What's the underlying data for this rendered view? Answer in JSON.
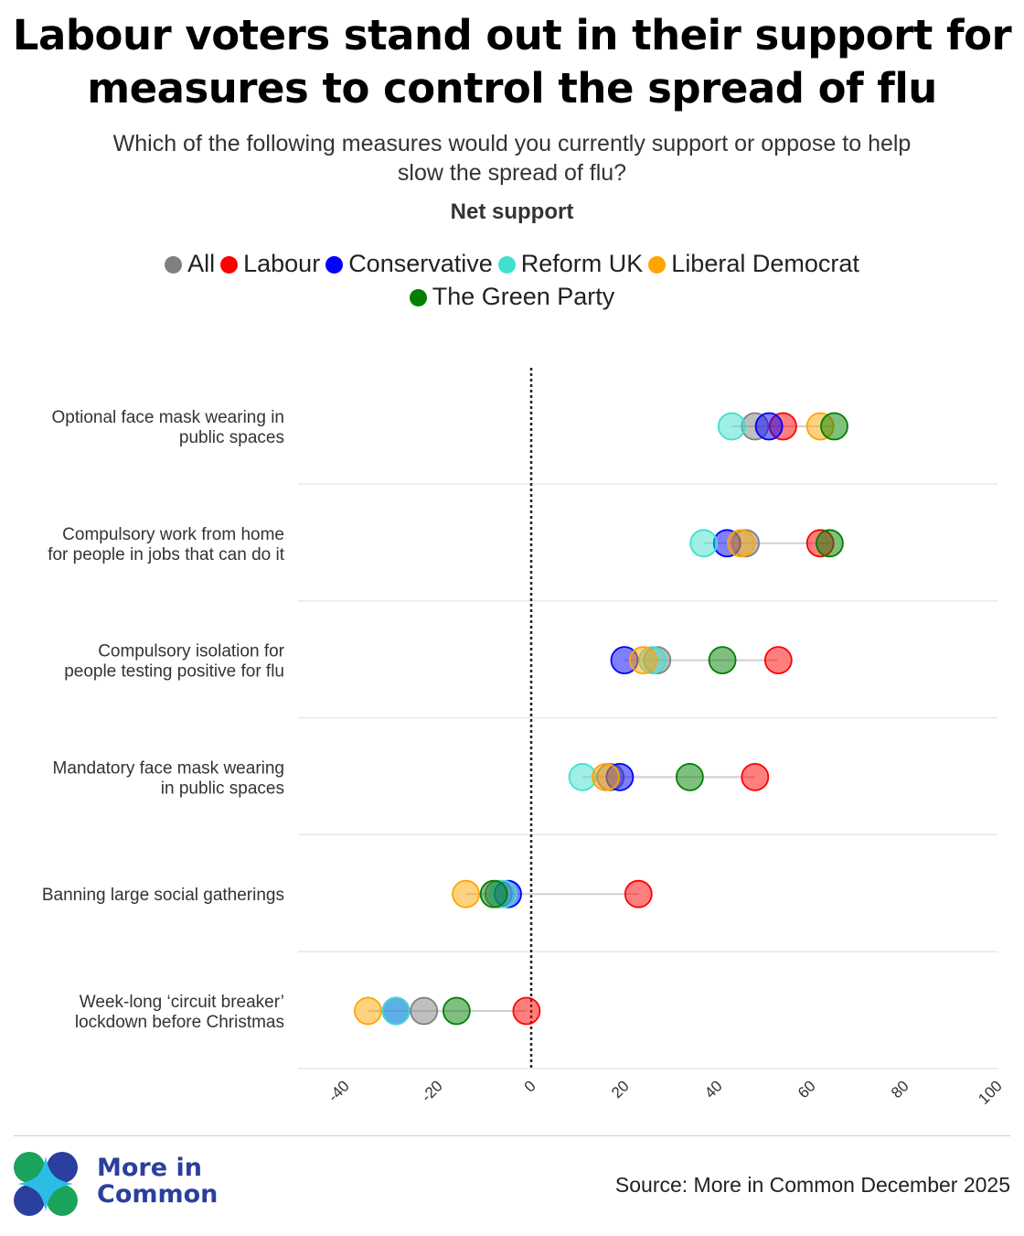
{
  "title_line1": "Labour voters stand out in their support for",
  "title_line2": "measures to control the spread of flu",
  "subtitle_line1": "Which of the following measures would you currently support or oppose to help",
  "subtitle_line2": "slow the spread of flu?",
  "logo_text_line1": "More in",
  "logo_text_line2": "Common",
  "source": "Source: More in Common December 2025",
  "chart_data": {
    "type": "dot",
    "title": "Labour voters stand out in their support for measures to control the spread of flu",
    "xlabel": "Net support",
    "xlim": [
      -50,
      100
    ],
    "xticks": [
      -40,
      -20,
      0,
      20,
      40,
      60,
      80,
      100
    ],
    "reference_line": 0,
    "legend_placement": "top",
    "categories": [
      [
        "Optional face mask wearing in",
        "public spaces"
      ],
      [
        "Compulsory work from home",
        "for people in jobs that can do it"
      ],
      [
        "Compulsory isolation for",
        "people testing positive for flu"
      ],
      [
        "Mandatory face mask wearing",
        "in public spaces"
      ],
      [
        "Banning large social gatherings"
      ],
      [
        "Week-long ‘circuit breaker’",
        "lockdown before Christmas"
      ]
    ],
    "series": [
      {
        "name": "All",
        "color": "#808080",
        "values": [
          48,
          46,
          27,
          17,
          -7,
          -23
        ]
      },
      {
        "name": "Labour",
        "color": "#ff0000",
        "values": [
          54,
          62,
          53,
          48,
          23,
          -1
        ]
      },
      {
        "name": "Conservative",
        "color": "#0000ff",
        "values": [
          51,
          42,
          20,
          19,
          -5,
          -29
        ]
      },
      {
        "name": "Reform UK",
        "color": "#40e0d0",
        "values": [
          43,
          37,
          26,
          11,
          -6,
          -29
        ]
      },
      {
        "name": "Liberal Democrat",
        "color": "#ffa500",
        "values": [
          62,
          45,
          24,
          16,
          -14,
          -35
        ]
      },
      {
        "name": "The Green Party",
        "color": "#008000",
        "values": [
          65,
          64,
          41,
          34,
          -8,
          -16
        ]
      }
    ]
  }
}
